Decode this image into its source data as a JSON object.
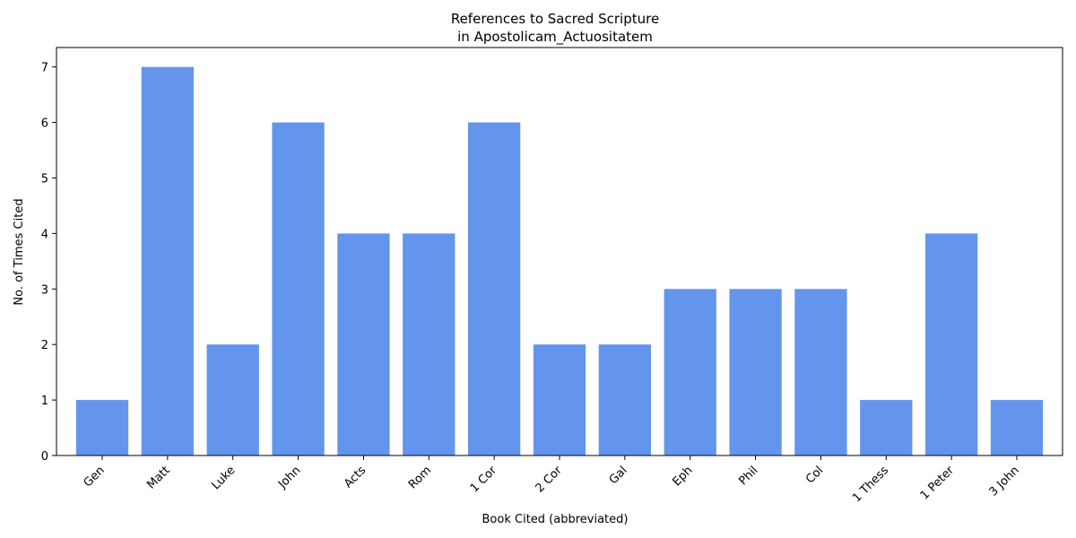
{
  "chart_data": {
    "type": "bar",
    "title_line1": "References to Sacred Scripture",
    "title_line2": "in Apostolicam_Actuositatem",
    "xlabel": "Book Cited (abbreviated)",
    "ylabel": "No. of Times Cited",
    "categories": [
      "Gen",
      "Matt",
      "Luke",
      "John",
      "Acts",
      "Rom",
      "1 Cor",
      "2 Cor",
      "Gal",
      "Eph",
      "Phil",
      "Col",
      "1 Thess",
      "1 Peter",
      "3 John"
    ],
    "values": [
      1,
      7,
      2,
      6,
      4,
      4,
      6,
      2,
      2,
      3,
      3,
      3,
      1,
      4,
      1
    ],
    "yticks": [
      0,
      1,
      2,
      3,
      4,
      5,
      6,
      7
    ],
    "ylim": [
      0,
      7.35
    ],
    "bar_color": "#6495ED",
    "grid": false,
    "legend": "none"
  }
}
